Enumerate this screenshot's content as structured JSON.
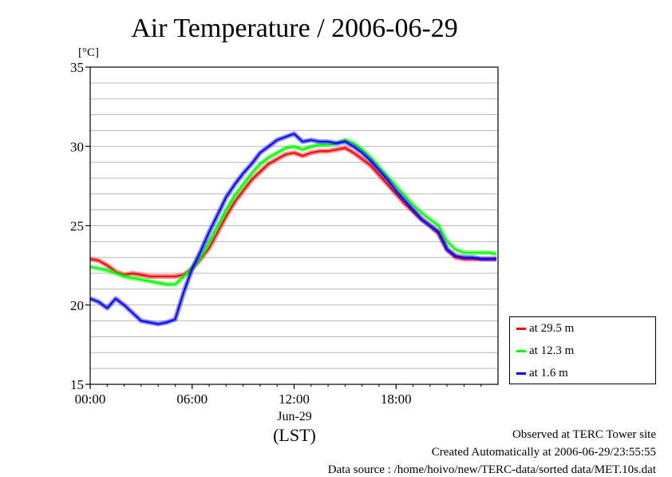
{
  "chart_data": {
    "type": "line",
    "title": "Air Temperature / 2006-06-29",
    "ylabel": "[°C]",
    "xlabel": "(LST)",
    "x_date_label": "Jun-29",
    "ylim": [
      15,
      35
    ],
    "xlim": [
      0,
      24
    ],
    "x_ticks": [
      {
        "value": 0,
        "label": "00:00"
      },
      {
        "value": 6,
        "label": "06:00"
      },
      {
        "value": 12,
        "label": "12:00"
      },
      {
        "value": 18,
        "label": "18:00"
      }
    ],
    "y_ticks": [
      15,
      20,
      25,
      30,
      35
    ],
    "y_minor_step": 1,
    "grid": true,
    "legend_position": "right",
    "series": [
      {
        "name": "at 29.5 m",
        "color": "#ff0000",
        "x": [
          0,
          0.5,
          1,
          1.5,
          2,
          2.5,
          3,
          3.5,
          4,
          4.5,
          5,
          5.5,
          6,
          6.5,
          7,
          7.5,
          8,
          8.5,
          9,
          9.5,
          10,
          10.5,
          11,
          11.5,
          12,
          12.5,
          13,
          13.5,
          14,
          14.5,
          15,
          15.5,
          16,
          16.5,
          17,
          17.5,
          18,
          18.5,
          19,
          19.5,
          20,
          20.5,
          21,
          21.5,
          22,
          22.5,
          23,
          23.5,
          23.9
        ],
        "y": [
          22.9,
          22.8,
          22.5,
          22.1,
          21.9,
          22.0,
          21.9,
          21.8,
          21.8,
          21.8,
          21.8,
          21.9,
          22.3,
          22.9,
          23.6,
          24.6,
          25.6,
          26.5,
          27.2,
          27.9,
          28.4,
          28.9,
          29.2,
          29.5,
          29.6,
          29.4,
          29.6,
          29.7,
          29.7,
          29.8,
          29.9,
          29.6,
          29.2,
          28.8,
          28.2,
          27.6,
          27.0,
          26.4,
          25.9,
          25.4,
          25.0,
          24.5,
          23.5,
          23.0,
          22.9,
          22.9,
          22.9,
          22.9,
          22.9
        ]
      },
      {
        "name": "at 12.3 m",
        "color": "#00ff00",
        "x": [
          0,
          0.5,
          1,
          1.5,
          2,
          2.5,
          3,
          3.5,
          4,
          4.5,
          5,
          5.5,
          6,
          6.5,
          7,
          7.5,
          8,
          8.5,
          9,
          9.5,
          10,
          10.5,
          11,
          11.5,
          12,
          12.5,
          13,
          13.5,
          14,
          14.5,
          15,
          15.5,
          16,
          16.5,
          17,
          17.5,
          18,
          18.5,
          19,
          19.5,
          20,
          20.5,
          21,
          21.5,
          22,
          22.5,
          23,
          23.5,
          23.9
        ],
        "y": [
          22.4,
          22.3,
          22.2,
          22.0,
          21.8,
          21.7,
          21.6,
          21.5,
          21.4,
          21.3,
          21.3,
          21.8,
          22.3,
          23.0,
          24.0,
          25.0,
          26.0,
          26.9,
          27.6,
          28.3,
          28.9,
          29.3,
          29.6,
          29.9,
          30.0,
          29.8,
          30.0,
          30.1,
          30.1,
          30.2,
          30.4,
          30.2,
          29.8,
          29.3,
          28.7,
          28.1,
          27.5,
          26.9,
          26.3,
          25.8,
          25.4,
          25.0,
          24.0,
          23.5,
          23.3,
          23.3,
          23.3,
          23.3,
          23.2
        ]
      },
      {
        "name": "at 1.6 m",
        "color": "#0000ff",
        "x": [
          0,
          0.5,
          1,
          1.5,
          2,
          2.5,
          3,
          3.5,
          4,
          4.5,
          5,
          5.5,
          6,
          6.5,
          7,
          7.5,
          8,
          8.5,
          9,
          9.5,
          10,
          10.5,
          11,
          11.5,
          12,
          12.5,
          13,
          13.5,
          14,
          14.5,
          15,
          15.5,
          16,
          16.5,
          17,
          17.5,
          18,
          18.5,
          19,
          19.5,
          20,
          20.5,
          21,
          21.5,
          22,
          22.5,
          23,
          23.5,
          23.9
        ],
        "y": [
          20.4,
          20.2,
          19.8,
          20.4,
          20.0,
          19.5,
          19.0,
          18.9,
          18.8,
          18.9,
          19.1,
          20.8,
          22.3,
          23.4,
          24.6,
          25.7,
          26.8,
          27.6,
          28.3,
          28.9,
          29.6,
          30.0,
          30.4,
          30.6,
          30.8,
          30.3,
          30.4,
          30.3,
          30.3,
          30.2,
          30.3,
          30.0,
          29.6,
          29.1,
          28.5,
          27.9,
          27.2,
          26.6,
          26.0,
          25.4,
          25.0,
          24.6,
          23.5,
          23.1,
          23.0,
          23.0,
          22.9,
          22.9,
          22.9
        ]
      }
    ]
  },
  "footer": {
    "line1": "Observed at TERC Tower site",
    "line2": "Created Automatically at 2006-06-29/23:55:55",
    "line3": "Data source : /home/hoivo/new/TERC-data/sorted  data/MET.10s.dat"
  }
}
